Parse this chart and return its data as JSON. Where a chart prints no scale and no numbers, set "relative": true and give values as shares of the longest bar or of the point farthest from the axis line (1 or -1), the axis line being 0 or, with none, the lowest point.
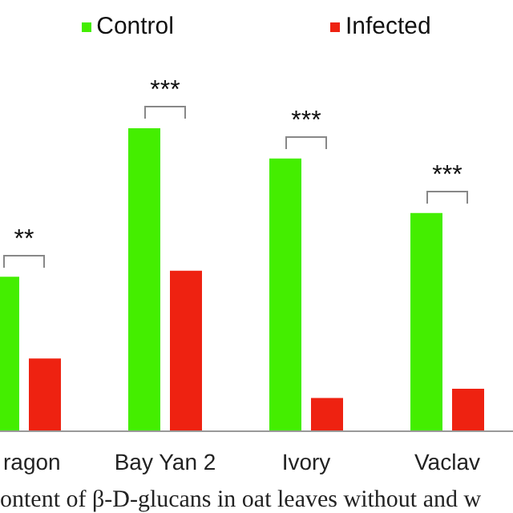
{
  "chart_data": {
    "type": "bar",
    "relative": true,
    "categories": [
      "ragon",
      "Bay Yan 2",
      "Ivory",
      "Vaclav"
    ],
    "series": [
      {
        "name": "Control",
        "color": "#44ee00",
        "values": [
          0.51,
          1,
          0.9,
          0.72
        ]
      },
      {
        "name": "Infected",
        "color": "#ee2211",
        "values": [
          0.24,
          0.53,
          0.11,
          0.14
        ]
      }
    ],
    "legend": "top",
    "annotations": [
      "**",
      "***",
      "***",
      "***",
      "ontent of β-D-glucans in oat leaves without and w"
    ]
  }
}
